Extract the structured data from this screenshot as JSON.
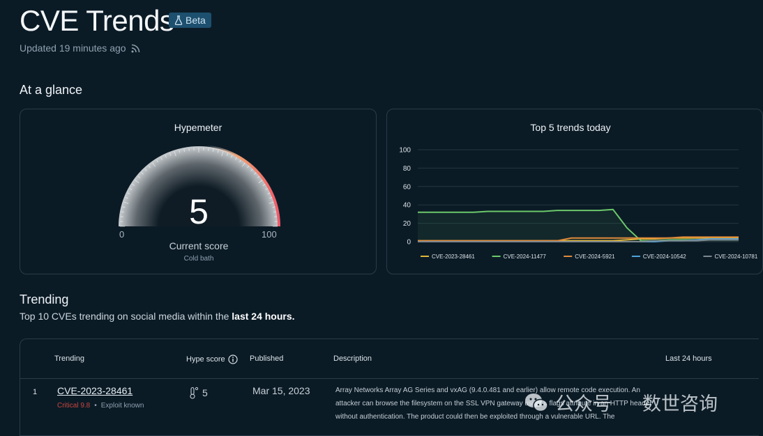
{
  "header": {
    "title": "CVE Trends",
    "badge": "Beta",
    "updated": "Updated 19 minutes ago"
  },
  "glance": {
    "heading": "At a glance",
    "hypemeter": {
      "title": "Hypemeter",
      "score": "5",
      "score_value": 5,
      "min_label": "0",
      "max_label": "100",
      "caption": "Current score",
      "status": "Cold bath"
    },
    "top5": {
      "title": "Top 5 trends today"
    }
  },
  "chart_data": {
    "type": "line",
    "title": "Top 5 trends today",
    "ylim": [
      0,
      100
    ],
    "yticks": [
      "100",
      "80",
      "60",
      "40",
      "20",
      "0"
    ],
    "grid": true,
    "legend_placement": "bottom",
    "x": [
      0,
      1,
      2,
      3,
      4,
      5,
      6,
      7,
      8,
      9,
      10,
      11,
      12,
      13,
      14,
      15,
      16,
      17,
      18,
      19,
      20,
      21,
      22,
      23
    ],
    "series": [
      {
        "name": "CVE-2023-28461",
        "color": "#e0b63a",
        "values": [
          1,
          1,
          1,
          1,
          1,
          1,
          1,
          1,
          1,
          1,
          1,
          1,
          1,
          1,
          1,
          2,
          3,
          3,
          4,
          4,
          4,
          4,
          4,
          4
        ]
      },
      {
        "name": "CVE-2024-11477",
        "color": "#6cc96a",
        "values": [
          32,
          32,
          32,
          32,
          32,
          33,
          33,
          33,
          33,
          33,
          34,
          34,
          34,
          34,
          35,
          15,
          1,
          1,
          2,
          2,
          2,
          2,
          2,
          2
        ]
      },
      {
        "name": "CVE-2024-5921",
        "color": "#e08a3a",
        "values": [
          1,
          1,
          1,
          1,
          1,
          1,
          1,
          1,
          1,
          1,
          1,
          4,
          4,
          4,
          4,
          4,
          4,
          4,
          4,
          5,
          5,
          5,
          5,
          5
        ]
      },
      {
        "name": "CVE-2024-10542",
        "color": "#4fa3d9",
        "values": [
          0,
          0,
          0,
          0,
          0,
          0,
          0,
          0,
          0,
          0,
          0,
          0,
          0,
          0,
          0,
          0,
          0,
          0,
          1,
          1,
          2,
          3,
          3,
          3
        ]
      },
      {
        "name": "CVE-2024-10781",
        "color": "#7d8790",
        "values": [
          0,
          0,
          0,
          0,
          0,
          0,
          0,
          0,
          0,
          0,
          0,
          0,
          0,
          0,
          0,
          0,
          0,
          1,
          1,
          1,
          1,
          2,
          2,
          2
        ]
      }
    ]
  },
  "trending": {
    "heading": "Trending",
    "subtitle_pre": "Top 10 CVEs trending on social media within the ",
    "subtitle_bold": "last 24 hours.",
    "columns": {
      "trending": "Trending",
      "hype": "Hype score",
      "published": "Published",
      "description": "Description",
      "last24": "Last 24 hours"
    },
    "rows": [
      {
        "rank": "1",
        "cve": "CVE-2023-28461",
        "severity": "Critical 9.8",
        "sep": "•",
        "exploit": "Exploit known",
        "hype": "5",
        "published": "Mar 15, 2023",
        "description": "Array Networks Array AG Series and vxAG (9.4.0.481 and earlier) allow remote code execution. An attacker can browse the filesystem on the SSL VPN gateway using a flags attribute in an HTTP header without authentication. The product could then be exploited through a vulnerable URL. The"
      }
    ]
  },
  "watermark": {
    "account": "公众号",
    "name": "数世咨询"
  }
}
